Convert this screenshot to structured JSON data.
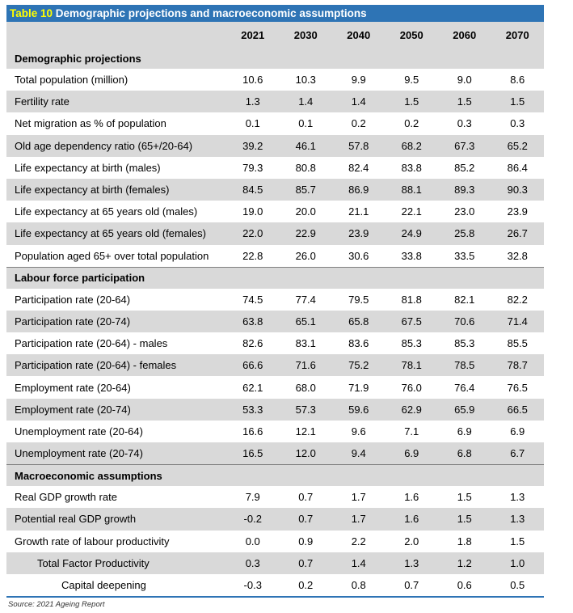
{
  "table": {
    "title_number": "Table 10",
    "title_text": " Demographic projections and macroeconomic assumptions",
    "years": [
      "2021",
      "2030",
      "2040",
      "2050",
      "2060",
      "2070"
    ],
    "sections": [
      {
        "heading": "Demographic projections",
        "rows": [
          {
            "label": "Total population (million)",
            "values": [
              "10.6",
              "10.3",
              "9.9",
              "9.5",
              "9.0",
              "8.6"
            ]
          },
          {
            "label": "Fertility rate",
            "values": [
              "1.3",
              "1.4",
              "1.4",
              "1.5",
              "1.5",
              "1.5"
            ]
          },
          {
            "label": "Net migration as % of population",
            "values": [
              "0.1",
              "0.1",
              "0.2",
              "0.2",
              "0.3",
              "0.3"
            ]
          },
          {
            "label": "Old age dependency ratio (65+/20-64)",
            "values": [
              "39.2",
              "46.1",
              "57.8",
              "68.2",
              "67.3",
              "65.2"
            ]
          },
          {
            "label": "Life expectancy at birth (males)",
            "values": [
              "79.3",
              "80.8",
              "82.4",
              "83.8",
              "85.2",
              "86.4"
            ]
          },
          {
            "label": "Life expectancy at birth (females)",
            "values": [
              "84.5",
              "85.7",
              "86.9",
              "88.1",
              "89.3",
              "90.3"
            ]
          },
          {
            "label": "Life expectancy at 65 years old (males)",
            "values": [
              "19.0",
              "20.0",
              "21.1",
              "22.1",
              "23.0",
              "23.9"
            ]
          },
          {
            "label": "Life expectancy at 65 years old (females)",
            "values": [
              "22.0",
              "22.9",
              "23.9",
              "24.9",
              "25.8",
              "26.7"
            ]
          },
          {
            "label": "Population aged 65+ over total population",
            "values": [
              "22.8",
              "26.0",
              "30.6",
              "33.8",
              "33.5",
              "32.8"
            ]
          }
        ]
      },
      {
        "heading": "Labour force participation",
        "rows": [
          {
            "label": "Participation rate (20-64)",
            "values": [
              "74.5",
              "77.4",
              "79.5",
              "81.8",
              "82.1",
              "82.2"
            ]
          },
          {
            "label": "Participation rate (20-74)",
            "values": [
              "63.8",
              "65.1",
              "65.8",
              "67.5",
              "70.6",
              "71.4"
            ]
          },
          {
            "label": "Participation rate (20-64) - males",
            "values": [
              "82.6",
              "83.1",
              "83.6",
              "85.3",
              "85.3",
              "85.5"
            ]
          },
          {
            "label": "Participation rate (20-64) - females",
            "values": [
              "66.6",
              "71.6",
              "75.2",
              "78.1",
              "78.5",
              "78.7"
            ]
          },
          {
            "label": "Employment rate (20-64)",
            "values": [
              "62.1",
              "68.0",
              "71.9",
              "76.0",
              "76.4",
              "76.5"
            ]
          },
          {
            "label": "Employment rate (20-74)",
            "values": [
              "53.3",
              "57.3",
              "59.6",
              "62.9",
              "65.9",
              "66.5"
            ]
          },
          {
            "label": "Unemployment rate (20-64)",
            "values": [
              "16.6",
              "12.1",
              "9.6",
              "7.1",
              "6.9",
              "6.9"
            ]
          },
          {
            "label": "Unemployment rate (20-74)",
            "values": [
              "16.5",
              "12.0",
              "9.4",
              "6.9",
              "6.8",
              "6.7"
            ]
          }
        ]
      },
      {
        "heading": "Macroeconomic assumptions",
        "rows": [
          {
            "label": "Real GDP growth rate",
            "values": [
              "7.9",
              "0.7",
              "1.7",
              "1.6",
              "1.5",
              "1.3"
            ]
          },
          {
            "label": "Potential real GDP growth",
            "values": [
              "-0.2",
              "0.7",
              "1.7",
              "1.6",
              "1.5",
              "1.3"
            ]
          },
          {
            "label": "Growth rate of labour productivity",
            "values": [
              "0.0",
              "0.9",
              "2.2",
              "2.0",
              "1.8",
              "1.5"
            ]
          },
          {
            "label": "Total Factor Productivity",
            "indent": 1,
            "values": [
              "0.3",
              "0.7",
              "1.4",
              "1.3",
              "1.2",
              "1.0"
            ]
          },
          {
            "label": "Capital deepening",
            "indent": 2,
            "values": [
              "-0.3",
              "0.2",
              "0.8",
              "0.7",
              "0.6",
              "0.5"
            ]
          }
        ]
      }
    ],
    "source": "Source: 2021 Ageing Report"
  }
}
